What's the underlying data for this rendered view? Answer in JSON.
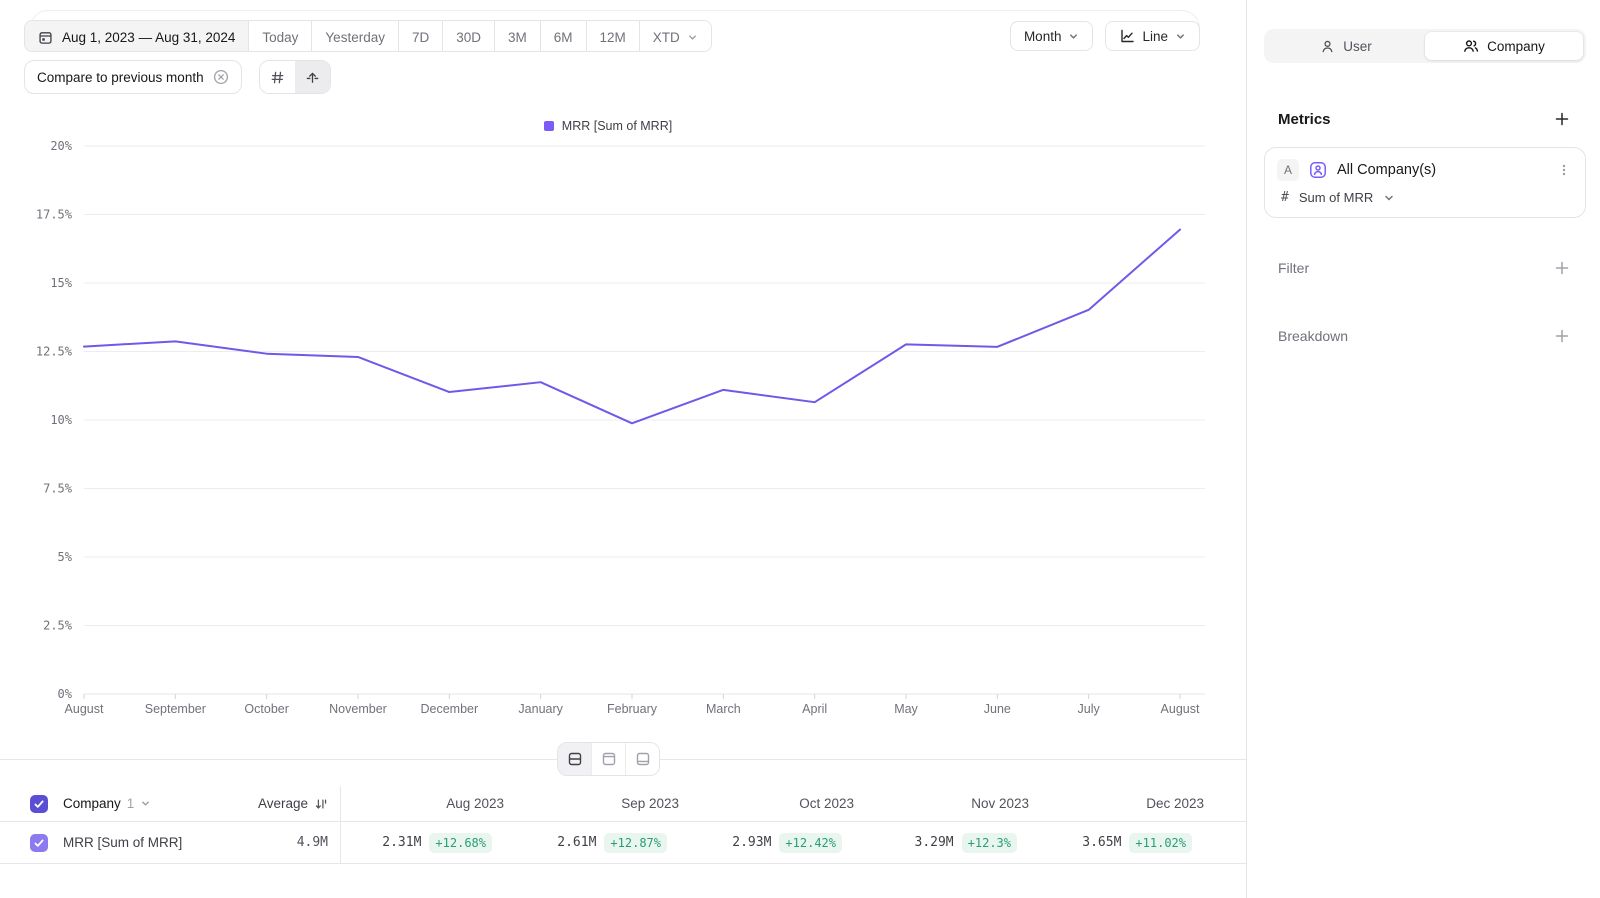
{
  "colors": {
    "line": "#6e59e8",
    "legend_swatch": "#7c5cf8",
    "checkbox_header": "#5a4fd4",
    "checkbox_row": "#8b7af0",
    "delta_positive_text": "#2a9d77",
    "delta_positive_bg": "#e9f6f0",
    "grid_line": "#ededf0",
    "muted_text": "#71717a"
  },
  "toolbar": {
    "date_range": "Aug 1, 2023 — Aug 31, 2024",
    "presets": [
      "Today",
      "Yesterday",
      "7D",
      "30D",
      "3M",
      "6M",
      "12M"
    ],
    "xtd_label": "XTD",
    "granularity_label": "Month",
    "chart_type_label": "Line",
    "compare_label": "Compare to previous month"
  },
  "legend": {
    "label": "MRR [Sum of MRR]"
  },
  "chart_data": {
    "type": "line",
    "title": "",
    "x": [
      "August",
      "September",
      "October",
      "November",
      "December",
      "January",
      "February",
      "March",
      "April",
      "May",
      "June",
      "July",
      "August"
    ],
    "series": [
      {
        "name": "MRR [Sum of MRR]",
        "values": [
          12.68,
          12.87,
          12.42,
          12.3,
          11.02,
          11.38,
          9.88,
          11.1,
          10.65,
          12.76,
          12.67,
          14.02,
          16.95
        ]
      }
    ],
    "unit": "%",
    "ylim": [
      0,
      20
    ],
    "y_ticks": [
      0,
      2.5,
      5,
      7.5,
      10,
      12.5,
      15,
      17.5,
      20
    ],
    "y_tick_labels": [
      "0%",
      "2.5%",
      "5%",
      "7.5%",
      "10%",
      "12.5%",
      "15%",
      "17.5%",
      "20%"
    ],
    "grid": true,
    "legend_position": "top"
  },
  "table": {
    "group_label": "Company",
    "group_count": "1",
    "average_label": "Average",
    "row": {
      "name": "MRR [Sum of MRR]",
      "average": "4.9M"
    },
    "columns": [
      {
        "label": "Aug 2023",
        "value": "2.31M",
        "delta": "+12.68%"
      },
      {
        "label": "Sep 2023",
        "value": "2.61M",
        "delta": "+12.87%"
      },
      {
        "label": "Oct 2023",
        "value": "2.93M",
        "delta": "+12.42%"
      },
      {
        "label": "Nov 2023",
        "value": "3.29M",
        "delta": "+12.3%"
      },
      {
        "label": "Dec 2023",
        "value": "3.65M",
        "delta": "+11.02%"
      }
    ]
  },
  "sidebar": {
    "toggle": {
      "user_label": "User",
      "company_label": "Company",
      "active": "Company"
    },
    "metrics_title": "Metrics",
    "metric_card": {
      "badge": "A",
      "name": "All Company(s)",
      "aggregation": "Sum of MRR"
    },
    "filter_label": "Filter",
    "breakdown_label": "Breakdown"
  }
}
